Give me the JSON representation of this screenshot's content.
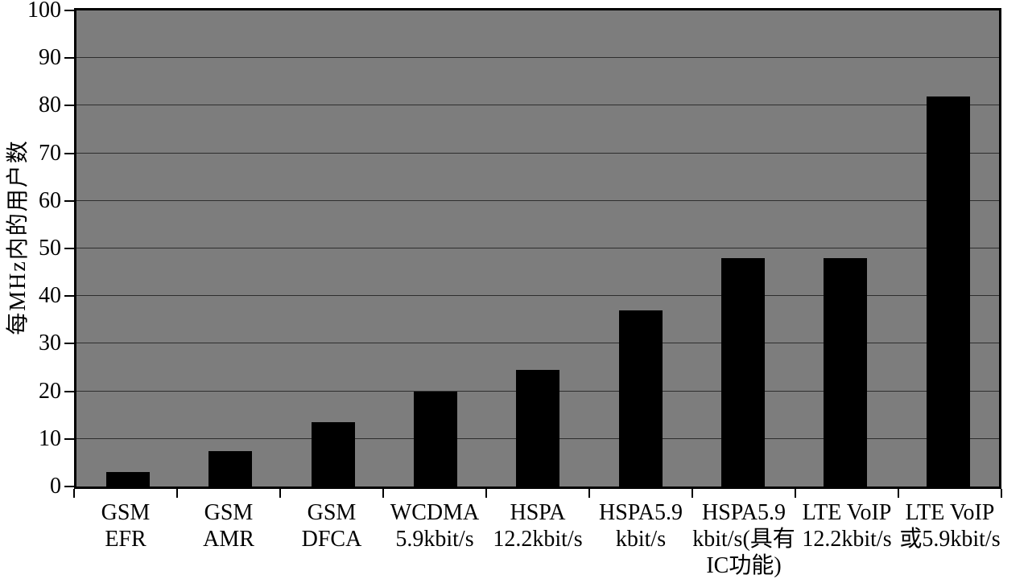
{
  "chart_data": {
    "type": "bar",
    "title": "",
    "ylabel": "每MHz内的用户数",
    "xlabel": "",
    "categories": [
      [
        "GSM",
        "EFR"
      ],
      [
        "GSM",
        "AMR"
      ],
      [
        "GSM",
        "DFCA"
      ],
      [
        "WCDMA",
        "5.9kbit/s"
      ],
      [
        "HSPA",
        "12.2kbit/s"
      ],
      [
        "HSPA5.9",
        "kbit/s"
      ],
      [
        "HSPA5.9",
        "kbit/s(具有",
        "IC功能)"
      ],
      [
        "LTE VoIP",
        "12.2kbit/s"
      ],
      [
        "LTE VoIP",
        "或5.9kbit/s"
      ]
    ],
    "values": [
      3,
      7.5,
      13.5,
      20,
      24.5,
      37,
      48,
      48,
      82
    ],
    "ylim": [
      0,
      100
    ],
    "yticks": [
      0,
      10,
      20,
      30,
      40,
      50,
      60,
      70,
      80,
      90,
      100
    ],
    "grid": true,
    "legend": false,
    "bar_color": "#000000",
    "plot_bg_color": "#7d7d7d",
    "grid_color": "#2e2e2e",
    "border_color": "#000000"
  }
}
